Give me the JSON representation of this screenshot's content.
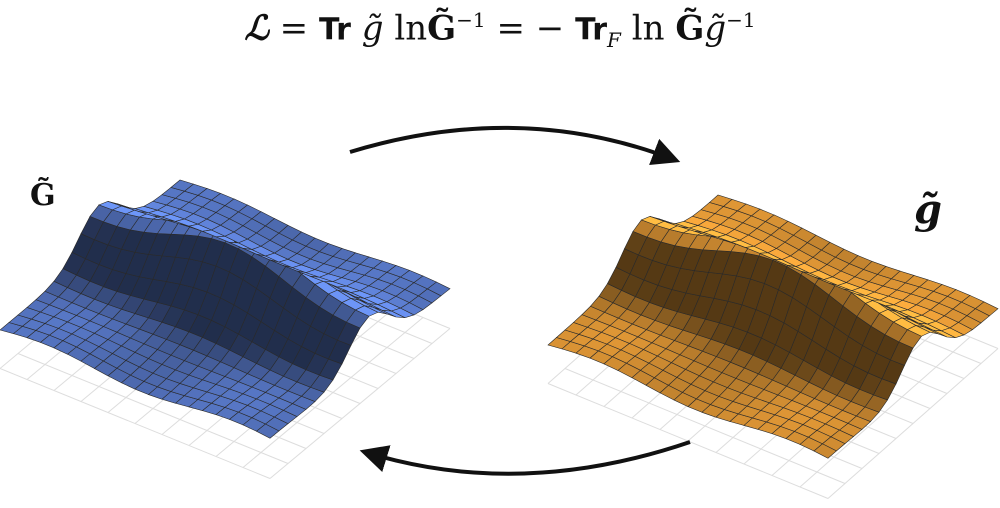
{
  "equation": {
    "lhs": "ℒ",
    "eq1": "=",
    "tr1": "Tr",
    "g_tilde": "g̃",
    "ln1": "ln",
    "G_tilde": "G̃",
    "sup_inv": "−1",
    "eq2": "=",
    "minus": "−",
    "tr2": "Tr",
    "sub_F": "F",
    "ln2": "ln",
    "G_tilde2": "G̃",
    "g_tilde2": "g̃",
    "sup_inv2": "−1"
  },
  "left_surface": {
    "label": "G̃",
    "color": "#5f82d8"
  },
  "right_surface": {
    "label": "g̃",
    "color": "#f3a43a"
  }
}
